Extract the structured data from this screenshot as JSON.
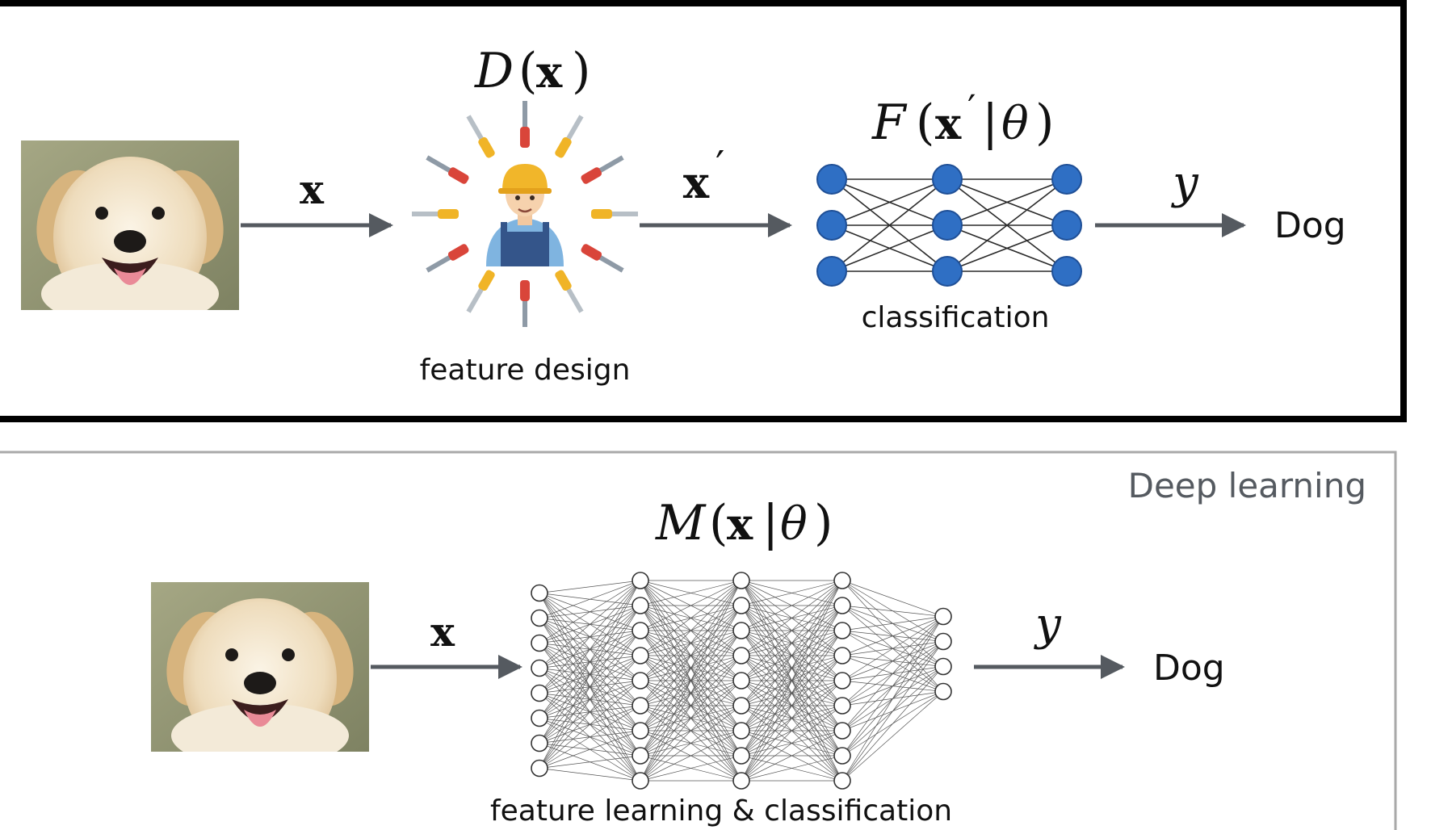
{
  "traditional": {
    "input_symbol": "x",
    "feature_func": {
      "script": "D",
      "open": "(",
      "arg": "x",
      "close": ")"
    },
    "feature_label": "feature design",
    "feature_out_symbol": "x",
    "feature_out_prime": "′",
    "classifier_func": {
      "script": "F",
      "open": "(",
      "arg": "x",
      "prime": "′",
      "bar": "|",
      "theta": "θ",
      "close": ")"
    },
    "classifier_label": "classification",
    "output_symbol": "y",
    "output_label": "Dog"
  },
  "deep": {
    "corner_label": "Deep learning",
    "input_symbol": "x",
    "model_func": {
      "script": "M",
      "open": "(",
      "arg": "x",
      "bar": "|",
      "theta": "θ",
      "close": ")"
    },
    "model_label": "feature learning & classification",
    "output_symbol": "y",
    "output_label": "Dog"
  },
  "colors": {
    "node_fill": "#2f6fc4",
    "node_stroke": "#1f4f96",
    "arrow": "#555a60",
    "frame_top": "#000000",
    "frame_bottom": "#a9a9a9",
    "corner_text": "#555a60"
  },
  "icons": [
    "puppy-photo",
    "worker-with-tools-illustration",
    "neural-network-icon"
  ]
}
